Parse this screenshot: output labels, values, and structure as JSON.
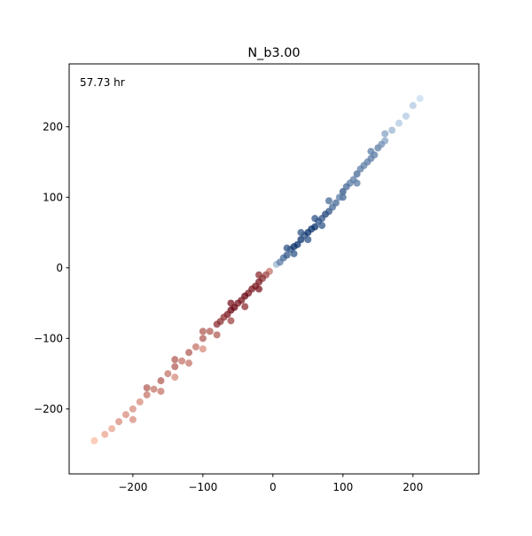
{
  "chart_data": {
    "type": "scatter",
    "title": "N_b3.00",
    "annotation": "57.73 hr",
    "xlim": [
      -291,
      294
    ],
    "ylim": [
      -292,
      289
    ],
    "xticks": [
      {
        "value": -200,
        "label": "−200"
      },
      {
        "value": -100,
        "label": "−100"
      },
      0,
      100,
      200
    ],
    "yticks": [
      {
        "value": -200,
        "label": "−200"
      },
      {
        "value": -100,
        "label": "−100"
      },
      0,
      100,
      200
    ],
    "series": [
      {
        "colors": [
          "#c6dbef",
          "#08306b"
        ],
        "x": [
          5,
          10,
          15,
          20,
          25,
          30,
          35,
          40,
          45,
          50,
          55,
          60,
          65,
          70,
          75,
          80,
          85,
          90,
          20,
          40,
          60,
          80,
          100,
          110,
          120,
          130,
          140,
          150,
          160,
          170,
          180,
          190,
          200,
          210,
          30,
          50,
          70,
          100,
          120,
          140,
          160,
          125,
          135,
          145,
          155,
          95,
          105,
          115
        ],
        "y": [
          5,
          8,
          14,
          18,
          26,
          30,
          33,
          40,
          46,
          50,
          55,
          58,
          66,
          70,
          76,
          80,
          86,
          92,
          28,
          50,
          70,
          95,
          108,
          120,
          133,
          145,
          155,
          170,
          180,
          195,
          205,
          215,
          230,
          240,
          20,
          40,
          60,
          100,
          120,
          165,
          190,
          140,
          150,
          160,
          175,
          100,
          115,
          125
        ]
      },
      {
        "colors": [
          "#fcbba1",
          "#67000d"
        ],
        "x": [
          -5,
          -10,
          -15,
          -20,
          -25,
          -30,
          -35,
          -40,
          -45,
          -50,
          -55,
          -60,
          -65,
          -70,
          -75,
          -80,
          -90,
          -100,
          -110,
          -120,
          -130,
          -140,
          -150,
          -160,
          -170,
          -180,
          -190,
          -200,
          -210,
          -220,
          -230,
          -240,
          -255,
          -20,
          -40,
          -60,
          -80,
          -100,
          -120,
          -140,
          -20,
          -60,
          -100,
          -140,
          -180,
          -160,
          -200
        ],
        "y": [
          -5,
          -10,
          -15,
          -20,
          -26,
          -30,
          -36,
          -40,
          -46,
          -50,
          -56,
          -60,
          -66,
          -70,
          -76,
          -80,
          -90,
          -100,
          -112,
          -120,
          -132,
          -140,
          -150,
          -160,
          -172,
          -180,
          -190,
          -200,
          -208,
          -218,
          -228,
          -236,
          -245,
          -30,
          -55,
          -75,
          -95,
          -115,
          -135,
          -155,
          -10,
          -50,
          -90,
          -130,
          -170,
          -175,
          -215
        ]
      }
    ]
  }
}
